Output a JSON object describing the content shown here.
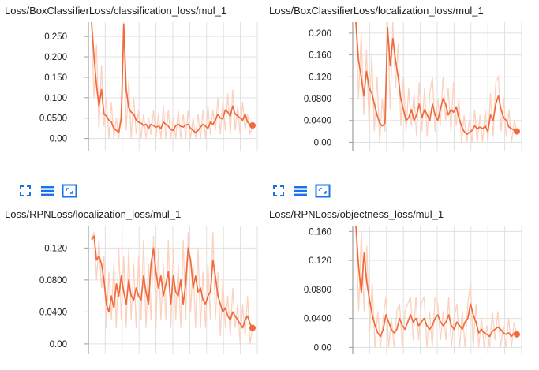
{
  "colors": {
    "line": "#f26a3b",
    "line_light": "#fbd2c0",
    "grid": "#e0e0e0",
    "axis": "#9e9e9e",
    "icon": "#1a73e8"
  },
  "toolbars": [
    {
      "buttons": [
        {
          "name": "expand",
          "icon": "expand-icon"
        },
        {
          "name": "toggle-log",
          "icon": "list-icon"
        },
        {
          "name": "fit-domain",
          "icon": "fit-icon"
        }
      ]
    },
    {
      "buttons": [
        {
          "name": "expand",
          "icon": "expand-icon"
        },
        {
          "name": "toggle-log",
          "icon": "list-icon"
        },
        {
          "name": "fit-domain",
          "icon": "fit-icon"
        }
      ]
    }
  ],
  "chart_data": [
    {
      "type": "line",
      "title": "Loss/BoxClassifierLoss/classification_loss/mul_1",
      "ylim": [
        -0.02,
        0.285
      ],
      "yticks": [
        0.0,
        0.05,
        0.1,
        0.15,
        0.2,
        0.25
      ],
      "ytick_labels": [
        "0.00",
        "0.0500",
        "0.100",
        "0.150",
        "0.200",
        "0.250"
      ],
      "xticks": 10,
      "grid": true,
      "smoothed": [
        0.29,
        0.2,
        0.13,
        0.08,
        0.12,
        0.06,
        0.055,
        0.045,
        0.04,
        0.025,
        0.02,
        0.015,
        0.05,
        0.28,
        0.12,
        0.075,
        0.065,
        0.06,
        0.045,
        0.04,
        0.038,
        0.032,
        0.035,
        0.025,
        0.035,
        0.032,
        0.028,
        0.03,
        0.025,
        0.04,
        0.035,
        0.03,
        0.022,
        0.02,
        0.032,
        0.035,
        0.03,
        0.028,
        0.033,
        0.035,
        0.025,
        0.02,
        0.015,
        0.02,
        0.028,
        0.035,
        0.03,
        0.025,
        0.04,
        0.035,
        0.045,
        0.06,
        0.05,
        0.048,
        0.07,
        0.065,
        0.055,
        0.08,
        0.06,
        0.055,
        0.05,
        0.045,
        0.06,
        0.04,
        0.035,
        0.032
      ],
      "raw": [
        0.29,
        0.1,
        0.23,
        0.02,
        0.18,
        0.03,
        0.1,
        0.0,
        0.09,
        0.0,
        0.05,
        0.0,
        0.08,
        0.29,
        0.02,
        0.14,
        0.0,
        0.1,
        0.01,
        0.07,
        0.0,
        0.06,
        0.0,
        0.05,
        0.01,
        0.07,
        0.0,
        0.06,
        0.0,
        0.08,
        0.0,
        0.07,
        0.0,
        0.05,
        0.0,
        0.07,
        0.0,
        0.06,
        0.0,
        0.07,
        0.0,
        0.05,
        0.0,
        0.06,
        0.0,
        0.07,
        0.0,
        0.08,
        0.01,
        0.07,
        0.02,
        0.1,
        0.01,
        0.09,
        0.02,
        0.11,
        0.01,
        0.12,
        0.02,
        0.08,
        0.01,
        0.09,
        0.02,
        0.06,
        0.01,
        0.03
      ]
    },
    {
      "type": "line",
      "title": "Loss/BoxClassifierLoss/localization_loss/mul_1",
      "ylim": [
        -0.008,
        0.22
      ],
      "yticks": [
        0.0,
        0.04,
        0.08,
        0.12,
        0.16,
        0.2
      ],
      "ytick_labels": [
        "0.00",
        "0.0400",
        "0.0800",
        "0.120",
        "0.160",
        "0.200"
      ],
      "xticks": 10,
      "grid": true,
      "smoothed": [
        0.22,
        0.15,
        0.12,
        0.085,
        0.13,
        0.1,
        0.09,
        0.07,
        0.05,
        0.035,
        0.03,
        0.035,
        0.21,
        0.14,
        0.19,
        0.15,
        0.12,
        0.08,
        0.06,
        0.04,
        0.045,
        0.06,
        0.04,
        0.05,
        0.07,
        0.045,
        0.06,
        0.05,
        0.04,
        0.07,
        0.05,
        0.04,
        0.06,
        0.08,
        0.07,
        0.05,
        0.06,
        0.055,
        0.065,
        0.045,
        0.03,
        0.02,
        0.015,
        0.018,
        0.022,
        0.03,
        0.025,
        0.028,
        0.025,
        0.03,
        0.02,
        0.05,
        0.04,
        0.07,
        0.085,
        0.06,
        0.045,
        0.04,
        0.028,
        0.025,
        0.022,
        0.02
      ],
      "raw": [
        0.22,
        0.08,
        0.2,
        0.05,
        0.17,
        0.03,
        0.16,
        0.02,
        0.12,
        0.0,
        0.08,
        0.02,
        0.22,
        0.06,
        0.22,
        0.1,
        0.18,
        0.03,
        0.12,
        0.02,
        0.1,
        0.03,
        0.09,
        0.01,
        0.11,
        0.02,
        0.1,
        0.01,
        0.09,
        0.12,
        0.02,
        0.08,
        0.03,
        0.12,
        0.04,
        0.1,
        0.02,
        0.11,
        0.03,
        0.08,
        0.0,
        0.05,
        0.0,
        0.04,
        0.0,
        0.06,
        0.0,
        0.05,
        0.0,
        0.06,
        0.0,
        0.09,
        0.01,
        0.11,
        0.12,
        0.02,
        0.08,
        0.01,
        0.06,
        0.0,
        0.04,
        0.02
      ]
    },
    {
      "type": "line",
      "title": "Loss/RPNLoss/localization_loss/mul_1",
      "ylim": [
        -0.008,
        0.148
      ],
      "yticks": [
        0.0,
        0.04,
        0.08,
        0.12
      ],
      "ytick_labels": [
        "0.00",
        "0.0400",
        "0.0800",
        "0.120"
      ],
      "xticks": 10,
      "grid": true,
      "smoothed": [
        0.13,
        0.135,
        0.105,
        0.11,
        0.1,
        0.08,
        0.05,
        0.04,
        0.06,
        0.045,
        0.075,
        0.06,
        0.085,
        0.065,
        0.05,
        0.08,
        0.06,
        0.055,
        0.07,
        0.06,
        0.055,
        0.085,
        0.065,
        0.05,
        0.1,
        0.12,
        0.09,
        0.07,
        0.085,
        0.06,
        0.075,
        0.09,
        0.05,
        0.085,
        0.065,
        0.06,
        0.08,
        0.05,
        0.075,
        0.12,
        0.105,
        0.07,
        0.085,
        0.065,
        0.07,
        0.055,
        0.05,
        0.06,
        0.065,
        0.105,
        0.085,
        0.06,
        0.05,
        0.04,
        0.045,
        0.035,
        0.03,
        0.04,
        0.035,
        0.03,
        0.025,
        0.02,
        0.03,
        0.035,
        0.025,
        0.02
      ],
      "raw": [
        0.13,
        0.14,
        0.08,
        0.13,
        0.07,
        0.11,
        0.02,
        0.09,
        0.03,
        0.1,
        0.02,
        0.12,
        0.03,
        0.11,
        0.02,
        0.12,
        0.03,
        0.1,
        0.02,
        0.11,
        0.03,
        0.13,
        0.02,
        0.1,
        0.03,
        0.135,
        0.02,
        0.12,
        0.03,
        0.1,
        0.03,
        0.13,
        0.02,
        0.12,
        0.03,
        0.1,
        0.02,
        0.13,
        0.03,
        0.14,
        0.04,
        0.1,
        0.02,
        0.12,
        0.02,
        0.09,
        0.02,
        0.1,
        0.03,
        0.14,
        0.03,
        0.09,
        0.01,
        0.08,
        0.02,
        0.06,
        0.01,
        0.07,
        0.02,
        0.05,
        0.0,
        0.05,
        0.01,
        0.06,
        0.0,
        0.02
      ]
    },
    {
      "type": "line",
      "title": "Loss/RPNLoss/objectness_loss/mul_1",
      "ylim": [
        -0.004,
        0.168
      ],
      "yticks": [
        0.0,
        0.04,
        0.08,
        0.12,
        0.16
      ],
      "ytick_labels": [
        "0.00",
        "0.0400",
        "0.0800",
        "0.120",
        "0.160"
      ],
      "xticks": 10,
      "grid": true,
      "smoothed": [
        0.168,
        0.11,
        0.075,
        0.13,
        0.09,
        0.065,
        0.045,
        0.03,
        0.02,
        0.015,
        0.025,
        0.045,
        0.035,
        0.025,
        0.02,
        0.025,
        0.04,
        0.03,
        0.025,
        0.035,
        0.045,
        0.035,
        0.04,
        0.03,
        0.035,
        0.04,
        0.03,
        0.025,
        0.03,
        0.04,
        0.045,
        0.035,
        0.03,
        0.035,
        0.045,
        0.03,
        0.025,
        0.035,
        0.03,
        0.025,
        0.035,
        0.04,
        0.06,
        0.045,
        0.035,
        0.02,
        0.025,
        0.02,
        0.018,
        0.015,
        0.022,
        0.025,
        0.028,
        0.025,
        0.02,
        0.018,
        0.02,
        0.015,
        0.02,
        0.018
      ],
      "raw": [
        0.168,
        0.05,
        0.16,
        0.05,
        0.14,
        0.02,
        0.09,
        0.0,
        0.05,
        0.0,
        0.04,
        0.07,
        0.0,
        0.04,
        0.0,
        0.05,
        0.06,
        0.0,
        0.05,
        0.06,
        0.07,
        0.01,
        0.07,
        0.01,
        0.06,
        0.07,
        0.0,
        0.05,
        0.0,
        0.07,
        0.06,
        0.01,
        0.05,
        0.01,
        0.07,
        0.0,
        0.04,
        0.06,
        0.0,
        0.05,
        0.0,
        0.06,
        0.09,
        0.0,
        0.06,
        0.0,
        0.04,
        0.0,
        0.03,
        0.0,
        0.05,
        0.01,
        0.05,
        0.0,
        0.03,
        0.0,
        0.04,
        0.0,
        0.035,
        0.015
      ]
    }
  ]
}
